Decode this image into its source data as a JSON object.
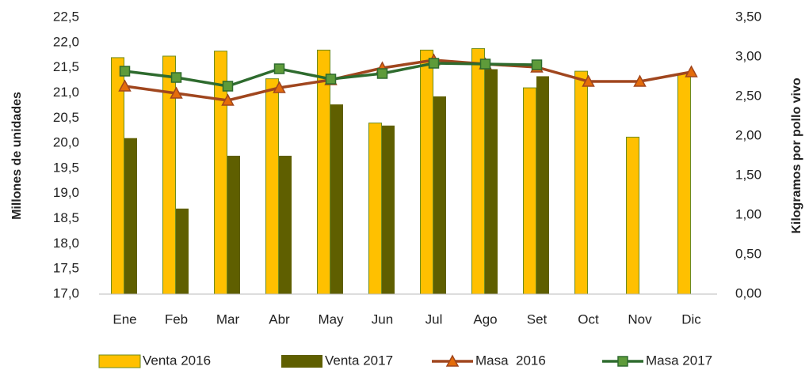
{
  "chart_data": {
    "type": "bar_line",
    "categories": [
      "Ene",
      "Feb",
      "Mar",
      "Abr",
      "May",
      "Jun",
      "Jul",
      "Ago",
      "Set",
      "Oct",
      "Nov",
      "Dic"
    ],
    "ylabel": "Millones de unidades",
    "y2label": "Kilogramos por pollo vivo",
    "ylim": [
      17.0,
      22.5
    ],
    "yticks": [
      {
        "value": 17.0,
        "label": "17,0"
      },
      {
        "value": 17.5,
        "label": "17,5"
      },
      {
        "value": 18.0,
        "label": "18,0"
      },
      {
        "value": 18.5,
        "label": "18,5"
      },
      {
        "value": 19.0,
        "label": "19,0"
      },
      {
        "value": 19.5,
        "label": "19,5"
      },
      {
        "value": 20.0,
        "label": "20,0"
      },
      {
        "value": 20.5,
        "label": "20,5"
      },
      {
        "value": 21.0,
        "label": "21,0"
      },
      {
        "value": 21.5,
        "label": "21,5"
      },
      {
        "value": 22.0,
        "label": "22,0"
      },
      {
        "value": 22.5,
        "label": "22,5"
      }
    ],
    "y2lim": [
      0,
      3.5
    ],
    "y2ticks": [
      {
        "value": 0,
        "label": "0,00"
      },
      {
        "value": 0.5,
        "label": "0,50"
      },
      {
        "value": 1.0,
        "label": "1,00"
      },
      {
        "value": 1.5,
        "label": "1,50"
      },
      {
        "value": 2.0,
        "label": "2,00"
      },
      {
        "value": 2.5,
        "label": "2,50"
      },
      {
        "value": 3.0,
        "label": "3,00"
      },
      {
        "value": 3.5,
        "label": "3,50"
      }
    ],
    "series": [
      {
        "name": "Venta 2016",
        "type": "bar",
        "color": "#FFC000",
        "values": [
          21.7,
          21.73,
          21.83,
          21.28,
          21.85,
          20.4,
          21.85,
          21.88,
          21.1,
          21.43,
          20.12,
          21.38
        ]
      },
      {
        "name": "Venta 2017",
        "type": "bar",
        "color": "#5F5F00",
        "values": [
          20.1,
          18.7,
          19.75,
          19.75,
          20.77,
          20.35,
          20.93,
          21.47,
          21.33,
          null,
          null,
          null
        ]
      },
      {
        "name": "Masa  2016",
        "type": "line",
        "axis": "y2",
        "color": "#A0461E",
        "marker": "triangle",
        "values": [
          2.63,
          2.54,
          2.45,
          2.61,
          2.71,
          2.86,
          2.96,
          2.91,
          2.87,
          2.69,
          2.69,
          2.81
        ]
      },
      {
        "name": "Masa 2017",
        "type": "line",
        "axis": "y2",
        "color": "#2E6B2E",
        "marker": "square",
        "values": [
          2.82,
          2.74,
          2.63,
          2.85,
          2.72,
          2.79,
          2.92,
          2.91,
          2.9,
          null,
          null,
          null
        ]
      }
    ],
    "legend": "bottom"
  }
}
